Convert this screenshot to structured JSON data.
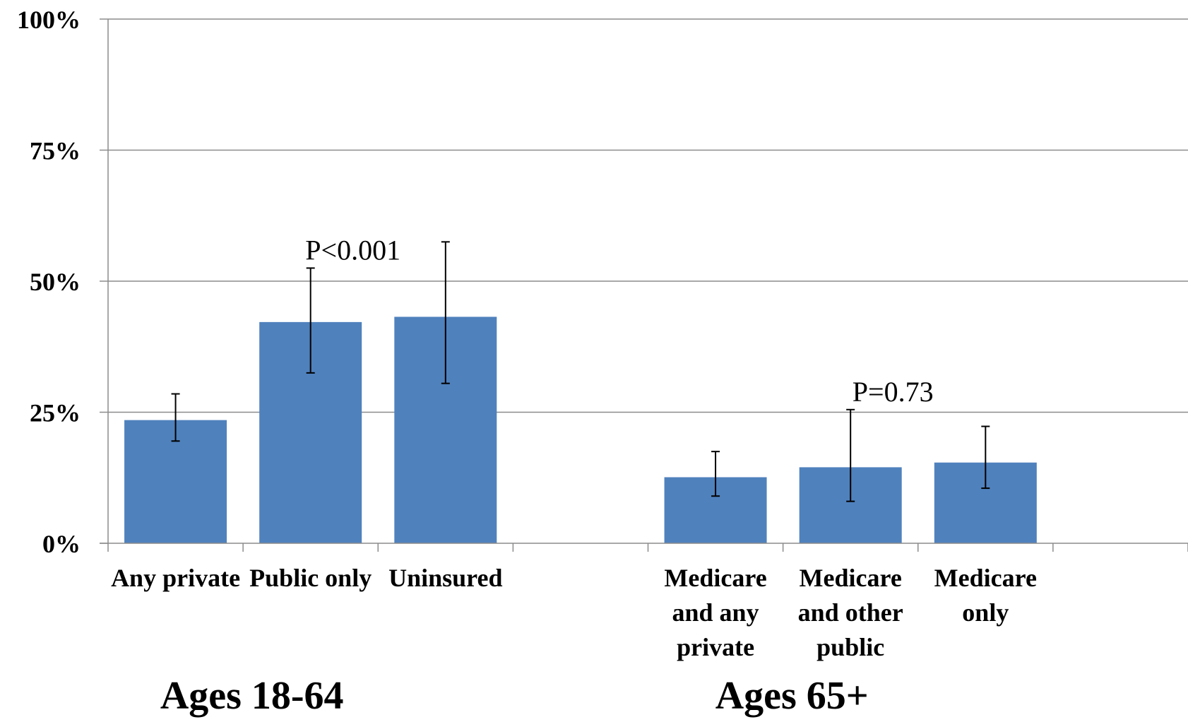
{
  "chart_data": {
    "type": "bar",
    "y_axis": {
      "ylim": [
        0,
        100
      ],
      "ticks": [
        {
          "value": 0,
          "label": "0%"
        },
        {
          "value": 25,
          "label": "25%"
        },
        {
          "value": 50,
          "label": "50%"
        },
        {
          "value": 75,
          "label": "75%"
        },
        {
          "value": 100,
          "label": "100%"
        }
      ],
      "grid": true
    },
    "groups": [
      {
        "label": "Ages 18-64",
        "annotation": "P<0.001"
      },
      {
        "label": "Ages 65+",
        "annotation": "P=0.73"
      }
    ],
    "slots": 8,
    "bars": [
      {
        "slot": 0,
        "group": 0,
        "label_lines": [
          "Any private"
        ],
        "value": 23.5,
        "error_low": 19.5,
        "error_high": 28.5
      },
      {
        "slot": 1,
        "group": 0,
        "label_lines": [
          "Public only"
        ],
        "value": 42.2,
        "error_low": 32.5,
        "error_high": 52.5
      },
      {
        "slot": 2,
        "group": 0,
        "label_lines": [
          "Uninsured"
        ],
        "value": 43.2,
        "error_low": 30.5,
        "error_high": 57.5
      },
      {
        "slot": 4,
        "group": 1,
        "label_lines": [
          "Medicare",
          "and any",
          "private"
        ],
        "value": 12.6,
        "error_low": 9.0,
        "error_high": 17.5
      },
      {
        "slot": 5,
        "group": 1,
        "label_lines": [
          "Medicare",
          "and other",
          "public"
        ],
        "value": 14.5,
        "error_low": 8.0,
        "error_high": 25.5
      },
      {
        "slot": 6,
        "group": 1,
        "label_lines": [
          "Medicare",
          "only"
        ],
        "value": 15.4,
        "error_low": 10.5,
        "error_high": 22.3
      }
    ],
    "colors": {
      "bar": "#4f81bd",
      "grid": "#8c8c8c",
      "axis": "#8c8c8c",
      "error": "#000000"
    }
  }
}
